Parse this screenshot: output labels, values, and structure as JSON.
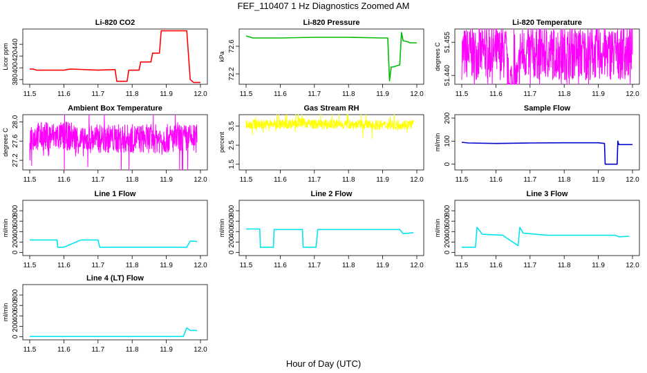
{
  "figure": {
    "title": "FEF_110407  1 Hz Diagnostics Zoomed AM",
    "xlabel": "Hour of Day (UTC)"
  },
  "chart_data": [
    {
      "type": "line",
      "title": "Li-820 CO2",
      "ylabel": "Licor ppm",
      "color": "#ff0000",
      "xlim": [
        11.5,
        12.0
      ],
      "ylim": [
        372,
        466
      ],
      "xticks": [
        "11.5",
        "11.6",
        "11.7",
        "11.8",
        "11.9",
        "12.0"
      ],
      "yticks": [
        "380",
        "400",
        "420",
        "440"
      ],
      "x": [
        11.5,
        11.51,
        11.52,
        11.6,
        11.62,
        11.7,
        11.75,
        11.755,
        11.785,
        11.79,
        11.82,
        11.825,
        11.855,
        11.86,
        11.88,
        11.885,
        11.95,
        11.96,
        11.97,
        11.98,
        12.0
      ],
      "y": [
        398,
        398,
        396,
        396,
        398,
        396,
        397,
        377,
        377,
        396,
        396,
        410,
        410,
        425,
        425,
        463,
        463,
        463,
        380,
        375,
        375
      ]
    },
    {
      "type": "line",
      "title": "Li-820 Pressure",
      "ylabel": "kPa",
      "color": "#00bb00",
      "xlim": [
        11.5,
        12.0
      ],
      "ylim": [
        72.05,
        72.85
      ],
      "xticks": [
        "11.5",
        "11.6",
        "11.7",
        "11.8",
        "11.9",
        "12.0"
      ],
      "yticks": [
        "72.2",
        "72.6"
      ],
      "x": [
        11.5,
        11.52,
        11.6,
        11.7,
        11.8,
        11.9,
        11.915,
        11.92,
        11.925,
        11.93,
        11.95,
        11.955,
        11.96,
        11.97,
        11.98,
        12.0
      ],
      "y": [
        72.75,
        72.72,
        72.72,
        72.73,
        72.73,
        72.72,
        72.72,
        72.1,
        72.3,
        72.3,
        72.33,
        72.8,
        72.68,
        72.67,
        72.65,
        72.65
      ]
    },
    {
      "type": "line",
      "title": "Li-820 Temperature",
      "ylabel": "degrees C",
      "color": "#ff00ff",
      "xlim": [
        11.5,
        12.0
      ],
      "ylim": [
        51.436,
        51.461
      ],
      "xticks": [
        "11.5",
        "11.6",
        "11.7",
        "11.8",
        "11.9",
        "12.0"
      ],
      "yticks": [
        "51.440",
        "51.455"
      ],
      "x": [
        11.5,
        11.63,
        11.635,
        11.665,
        11.67,
        12.0
      ],
      "y": [
        51.45,
        51.45,
        51.437,
        51.437,
        51.45,
        51.45
      ],
      "noise": 0.012
    },
    {
      "type": "line",
      "title": "Ambient Box Temperature",
      "ylabel": "degrees C",
      "color": "#ff00ff",
      "xlim": [
        11.5,
        12.0
      ],
      "ylim": [
        27.0,
        28.15
      ],
      "xticks": [
        "11.5",
        "11.6",
        "11.7",
        "11.8",
        "11.9",
        "12.0"
      ],
      "yticks": [
        "27.2",
        "27.6",
        "28.0"
      ],
      "x": [
        11.5,
        11.625,
        11.665,
        11.67,
        11.99
      ],
      "y": [
        27.7,
        27.7,
        27.55,
        27.65,
        27.65
      ],
      "noise": 0.3
    },
    {
      "type": "line",
      "title": "Gas Stream RH",
      "ylabel": "percent",
      "color": "#ffff00",
      "xlim": [
        11.5,
        12.0
      ],
      "ylim": [
        1.2,
        4.1
      ],
      "xticks": [
        "11.5",
        "11.6",
        "11.7",
        "11.8",
        "11.9",
        "12.0"
      ],
      "yticks": [
        "1.5",
        "2.5",
        "3.5"
      ],
      "x": [
        11.5,
        11.62,
        11.65,
        11.7,
        11.8,
        11.9,
        11.99
      ],
      "y": [
        3.6,
        3.6,
        3.7,
        3.6,
        3.6,
        3.55,
        3.6
      ],
      "noise": 0.25
    },
    {
      "type": "line",
      "title": "Sample Flow",
      "ylabel": "ml/min",
      "color": "#0000cc",
      "xlim": [
        11.5,
        12.0
      ],
      "ylim": [
        -25,
        215
      ],
      "xticks": [
        "11.5",
        "11.6",
        "11.7",
        "11.8",
        "11.9",
        "12.0"
      ],
      "yticks": [
        "0",
        "100",
        "200"
      ],
      "x": [
        11.5,
        11.52,
        11.6,
        11.7,
        11.8,
        11.9,
        11.918,
        11.92,
        11.955,
        11.957,
        11.96,
        11.97,
        12.0
      ],
      "y": [
        95,
        92,
        90,
        92,
        93,
        93,
        90,
        0,
        0,
        100,
        85,
        85,
        85
      ]
    },
    {
      "type": "line",
      "title": "Line 1 Flow",
      "ylabel": "ml/min",
      "color": "#00e5ee",
      "xlim": [
        11.5,
        12.0
      ],
      "ylim": [
        -60,
        1000
      ],
      "xticks": [
        "11.5",
        "11.6",
        "11.7",
        "11.8",
        "11.9",
        "12.0"
      ],
      "yticks": [
        "0",
        "200",
        "400",
        "600",
        "800"
      ],
      "x": [
        11.5,
        11.58,
        11.582,
        11.6,
        11.65,
        11.7,
        11.705,
        11.95,
        11.96,
        11.97,
        11.99
      ],
      "y": [
        240,
        240,
        100,
        100,
        240,
        240,
        100,
        100,
        100,
        220,
        210
      ]
    },
    {
      "type": "line",
      "title": "Line 2 Flow",
      "ylabel": "ml/min",
      "color": "#00e5ee",
      "xlim": [
        11.5,
        12.0
      ],
      "ylim": [
        -60,
        1000
      ],
      "xticks": [
        "11.5",
        "11.6",
        "11.7",
        "11.8",
        "11.9",
        "12.0"
      ],
      "yticks": [
        "0",
        "200",
        "400",
        "600",
        "800"
      ],
      "x": [
        11.5,
        11.54,
        11.542,
        11.58,
        11.582,
        11.665,
        11.667,
        11.705,
        11.71,
        11.95,
        11.96,
        11.99
      ],
      "y": [
        450,
        450,
        100,
        100,
        440,
        440,
        100,
        100,
        440,
        440,
        360,
        380
      ]
    },
    {
      "type": "line",
      "title": "Line 3 Flow",
      "ylabel": "ml/min",
      "color": "#00e5ee",
      "xlim": [
        11.5,
        12.0
      ],
      "ylim": [
        -60,
        1000
      ],
      "xticks": [
        "11.5",
        "11.6",
        "11.7",
        "11.8",
        "11.9",
        "12.0"
      ],
      "yticks": [
        "0",
        "200",
        "400",
        "600",
        "800"
      ],
      "x": [
        11.5,
        11.54,
        11.545,
        11.56,
        11.62,
        11.665,
        11.67,
        11.68,
        11.75,
        11.95,
        11.96,
        11.99
      ],
      "y": [
        100,
        100,
        480,
        350,
        330,
        130,
        480,
        370,
        330,
        330,
        300,
        310
      ]
    },
    {
      "type": "line",
      "title": "Line 4 (LT) Flow",
      "ylabel": "ml/min",
      "color": "#00e5ee",
      "xlim": [
        11.5,
        12.0
      ],
      "ylim": [
        -60,
        1000
      ],
      "xticks": [
        "11.5",
        "11.6",
        "11.7",
        "11.8",
        "11.9",
        "12.0"
      ],
      "yticks": [
        "0",
        "200",
        "400",
        "600",
        "800"
      ],
      "x": [
        11.5,
        11.7,
        11.95,
        11.96,
        11.97,
        11.99
      ],
      "y": [
        5,
        5,
        5,
        170,
        120,
        120
      ]
    }
  ]
}
